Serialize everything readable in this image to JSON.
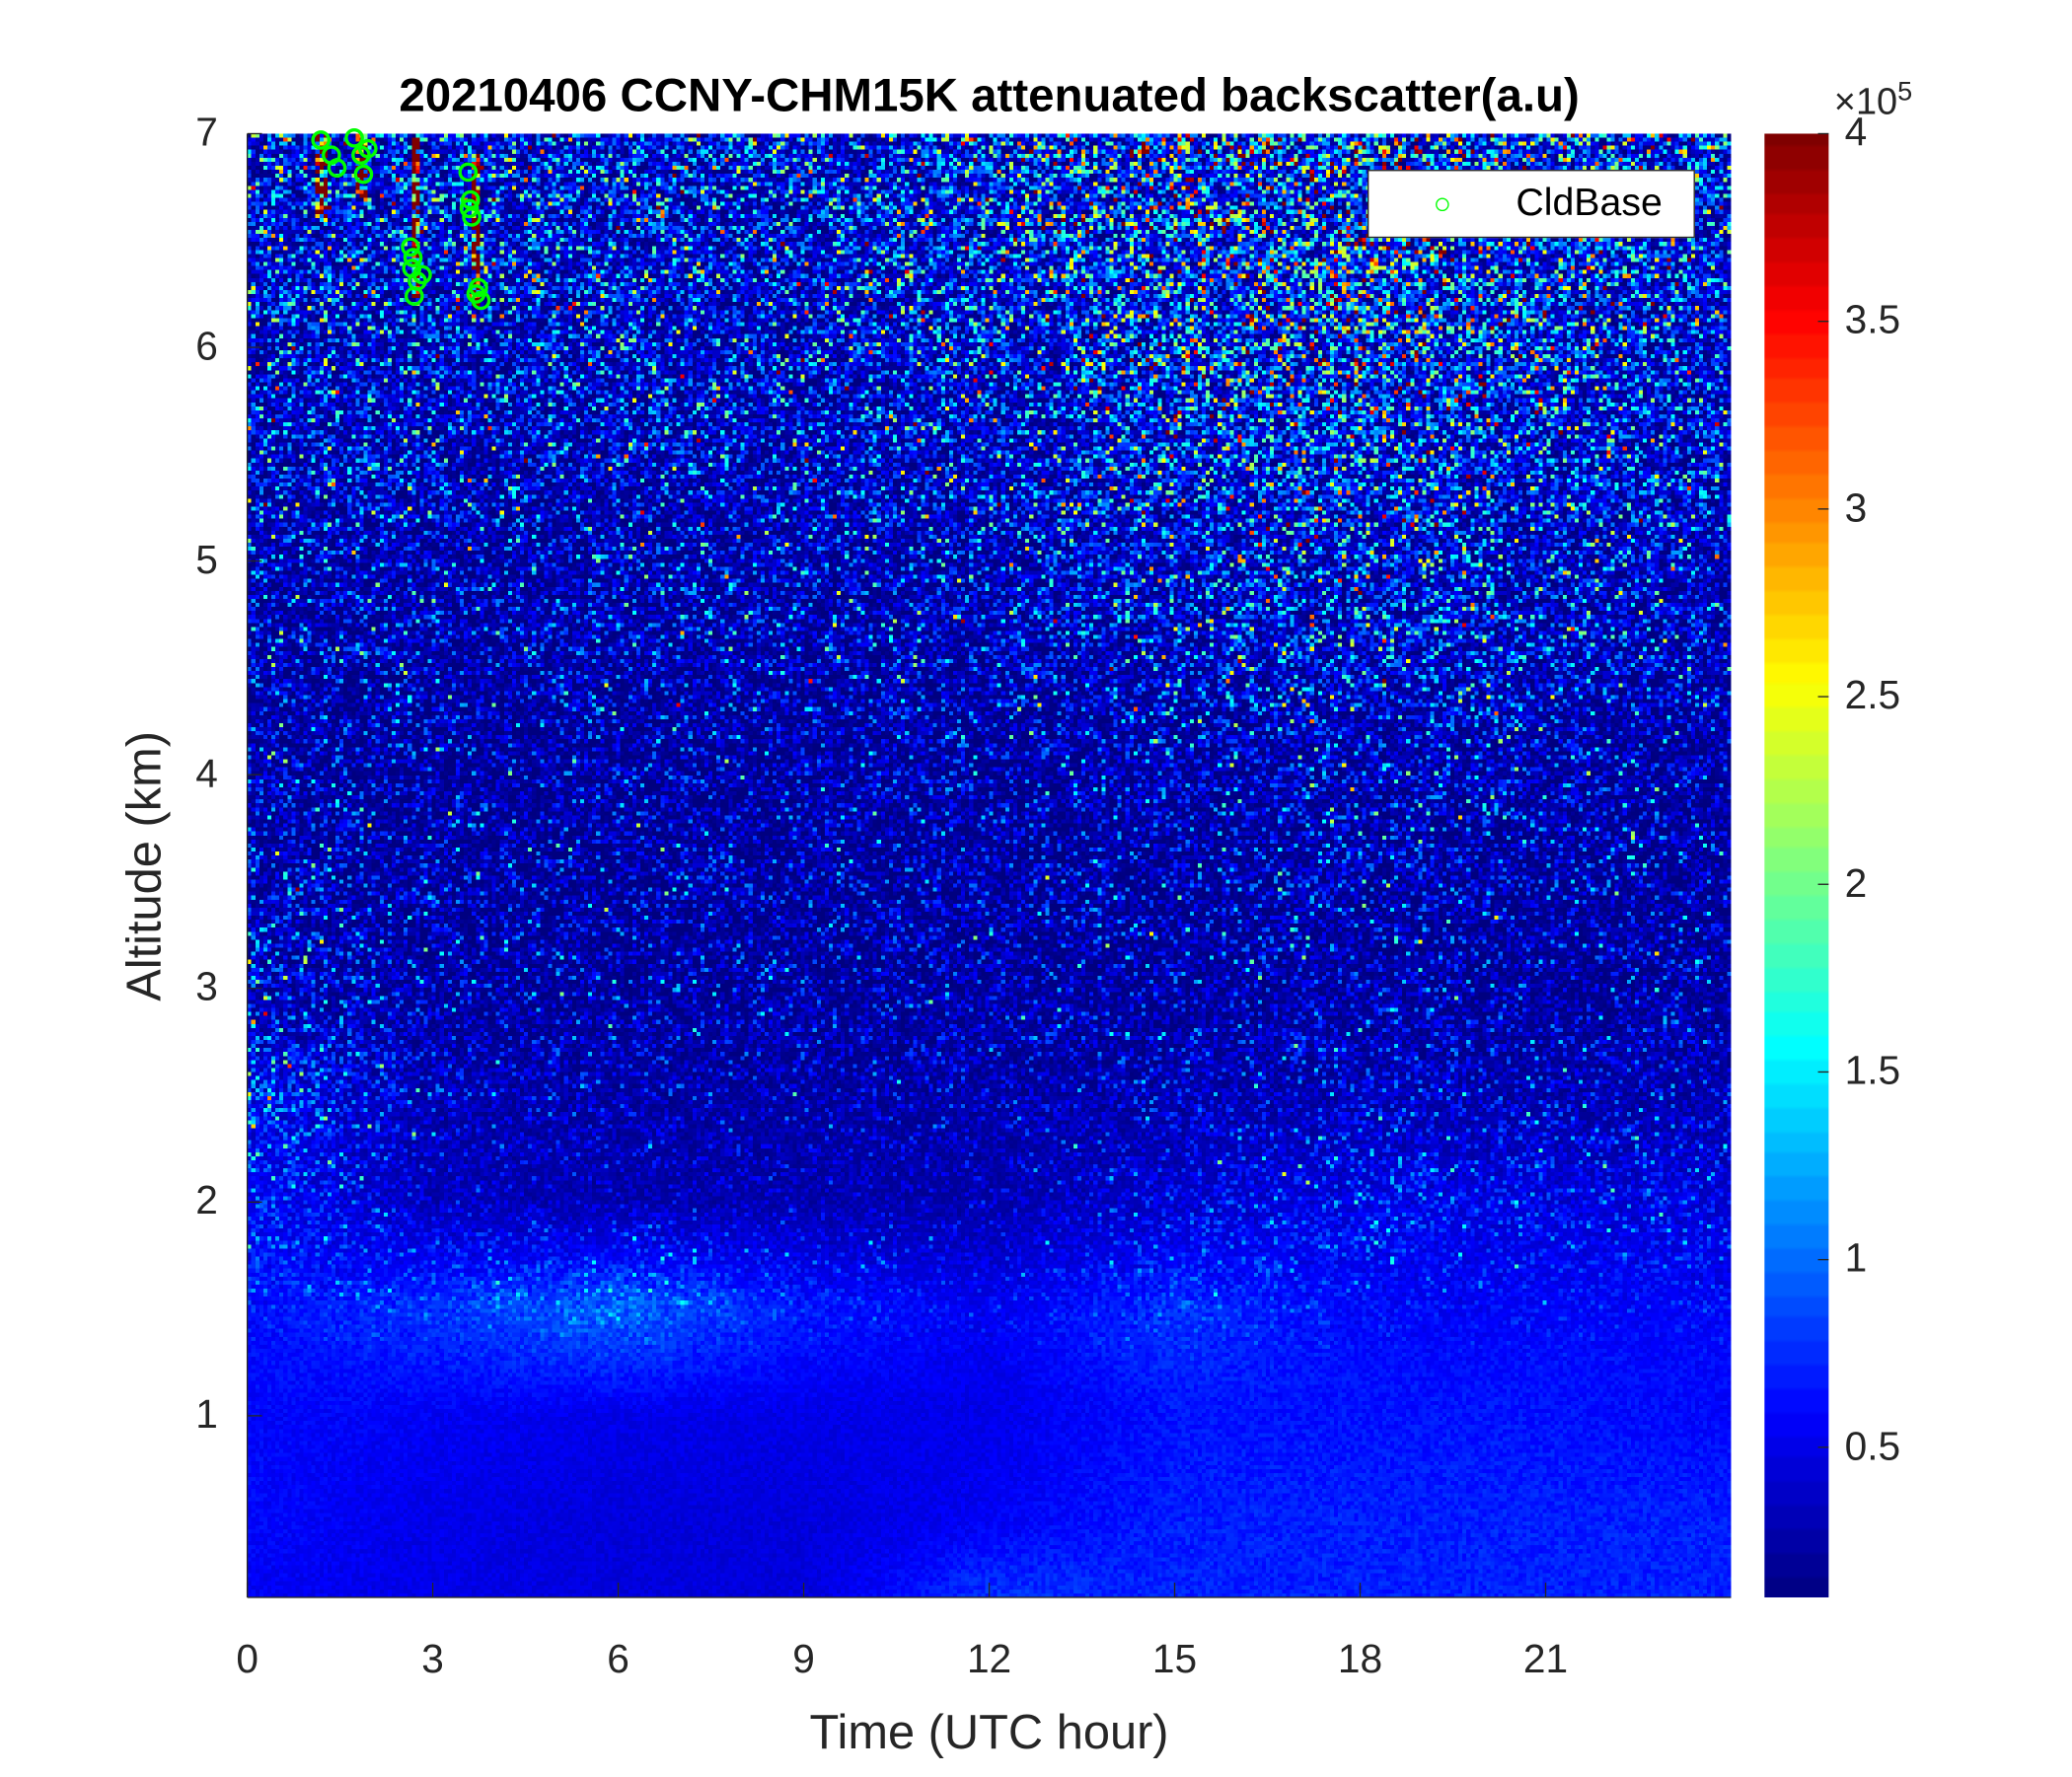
{
  "chart_data": {
    "type": "heatmap",
    "title": "20210406 CCNY-CHM15K attenuated backscatter(a.u)",
    "xlabel": "Time (UTC hour)",
    "ylabel": "Altitude (km)",
    "xlim": [
      0,
      24
    ],
    "ylim": [
      0.15,
      7
    ],
    "xticks": [
      "0",
      "3",
      "6",
      "9",
      "12",
      "15",
      "18",
      "21"
    ],
    "yticks": [
      "1",
      "2",
      "3",
      "4",
      "5",
      "6",
      "7"
    ],
    "colorbar": {
      "colormap": "jet",
      "clim": [
        0.1,
        4
      ],
      "ticks": [
        "0.5",
        "1",
        "1.5",
        "2",
        "2.5",
        "3",
        "3.5",
        "4"
      ],
      "exponent_label": "×10",
      "exponent_power": "5"
    },
    "z_grid_x1e5": {
      "times": [
        0,
        3,
        6,
        9,
        12,
        15,
        18,
        21,
        24
      ],
      "altitudes": [
        0.2,
        0.5,
        1.0,
        1.5,
        2.0,
        2.5,
        3.0,
        4.0,
        5.0,
        6.0,
        7.0
      ],
      "values": [
        [
          0.55,
          0.5,
          0.45,
          0.45,
          0.75,
          0.7,
          0.7,
          0.7,
          0.7
        ],
        [
          0.6,
          0.5,
          0.45,
          0.45,
          0.55,
          0.7,
          0.7,
          0.7,
          0.7
        ],
        [
          0.6,
          0.55,
          0.5,
          0.5,
          0.5,
          0.65,
          0.65,
          0.65,
          0.6
        ],
        [
          0.65,
          0.8,
          1.0,
          0.7,
          0.55,
          0.8,
          0.6,
          0.6,
          0.6
        ],
        [
          0.7,
          0.35,
          0.3,
          0.3,
          0.3,
          0.45,
          0.6,
          0.55,
          0.5
        ],
        [
          0.8,
          0.35,
          0.3,
          0.3,
          0.3,
          0.35,
          0.4,
          0.35,
          0.35
        ],
        [
          0.5,
          0.3,
          0.3,
          0.3,
          0.3,
          0.3,
          0.35,
          0.3,
          0.3
        ],
        [
          0.35,
          0.3,
          0.3,
          0.3,
          0.3,
          0.35,
          0.4,
          0.35,
          0.3
        ],
        [
          0.45,
          0.4,
          0.4,
          0.4,
          0.45,
          0.6,
          0.7,
          0.55,
          0.45
        ],
        [
          0.6,
          0.55,
          0.55,
          0.55,
          0.65,
          0.9,
          1.0,
          0.8,
          0.6
        ],
        [
          0.7,
          0.7,
          0.7,
          0.7,
          0.9,
          1.2,
          1.3,
          1.0,
          0.7
        ]
      ]
    },
    "cloud_streaks": [
      {
        "time": 1.2,
        "from_km": 6.6,
        "to_km": 7.0
      },
      {
        "time": 1.85,
        "from_km": 6.7,
        "to_km": 7.0
      },
      {
        "time": 2.75,
        "from_km": 6.2,
        "to_km": 7.0
      },
      {
        "time": 3.7,
        "from_km": 6.2,
        "to_km": 6.9
      }
    ],
    "series": [
      {
        "name": "CldBase",
        "marker": "circle",
        "color": "#00ff00",
        "points": [
          [
            1.19,
            6.97
          ],
          [
            1.36,
            6.9
          ],
          [
            1.45,
            6.84
          ],
          [
            1.73,
            6.98
          ],
          [
            1.84,
            6.9
          ],
          [
            1.88,
            6.81
          ],
          [
            1.95,
            6.93
          ],
          [
            2.64,
            6.47
          ],
          [
            2.66,
            6.37
          ],
          [
            2.75,
            6.31
          ],
          [
            2.7,
            6.24
          ],
          [
            2.83,
            6.34
          ],
          [
            2.68,
            6.42
          ],
          [
            3.57,
            6.82
          ],
          [
            3.61,
            6.69
          ],
          [
            3.63,
            6.61
          ],
          [
            3.59,
            6.65
          ],
          [
            3.74,
            6.28
          ],
          [
            3.78,
            6.22
          ],
          [
            3.7,
            6.25
          ]
        ]
      }
    ],
    "legend": {
      "placement": "top-right",
      "entries": [
        "CldBase"
      ]
    }
  }
}
